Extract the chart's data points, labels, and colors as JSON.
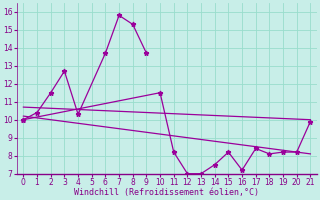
{
  "xlabel": "Windchill (Refroidissement éolien,°C)",
  "x": [
    0,
    1,
    2,
    3,
    4,
    5,
    6,
    7,
    8,
    9,
    10,
    11,
    12,
    13,
    14,
    15,
    16,
    17,
    18,
    19,
    20,
    21
  ],
  "line1_x": [
    0,
    1,
    2,
    3,
    4,
    6,
    7,
    8,
    9
  ],
  "line1_y": [
    10.0,
    10.4,
    11.5,
    12.7,
    10.3,
    13.7,
    15.8,
    15.3,
    13.7
  ],
  "line2_x": [
    0,
    10,
    11,
    12,
    13,
    14,
    15,
    16,
    17,
    18,
    19,
    20,
    21
  ],
  "line2_y": [
    10.0,
    11.5,
    8.2,
    7.0,
    7.0,
    7.5,
    8.2,
    7.2,
    8.4,
    8.1,
    8.2,
    8.2,
    9.9
  ],
  "line3_x": [
    0,
    21
  ],
  "line3_y": [
    10.7,
    10.0
  ],
  "line4_x": [
    0,
    21
  ],
  "line4_y": [
    10.2,
    8.1
  ],
  "line_color": "#9b009b",
  "bg_color": "#c8eee8",
  "grid_color": "#99ddcc",
  "label_color": "#880088",
  "xlim": [
    -0.5,
    21.5
  ],
  "ylim": [
    7,
    16.5
  ],
  "yticks": [
    7,
    8,
    9,
    10,
    11,
    12,
    13,
    14,
    15,
    16
  ],
  "xticks": [
    0,
    1,
    2,
    3,
    4,
    5,
    6,
    7,
    8,
    9,
    10,
    11,
    12,
    13,
    14,
    15,
    16,
    17,
    18,
    19,
    20,
    21
  ]
}
